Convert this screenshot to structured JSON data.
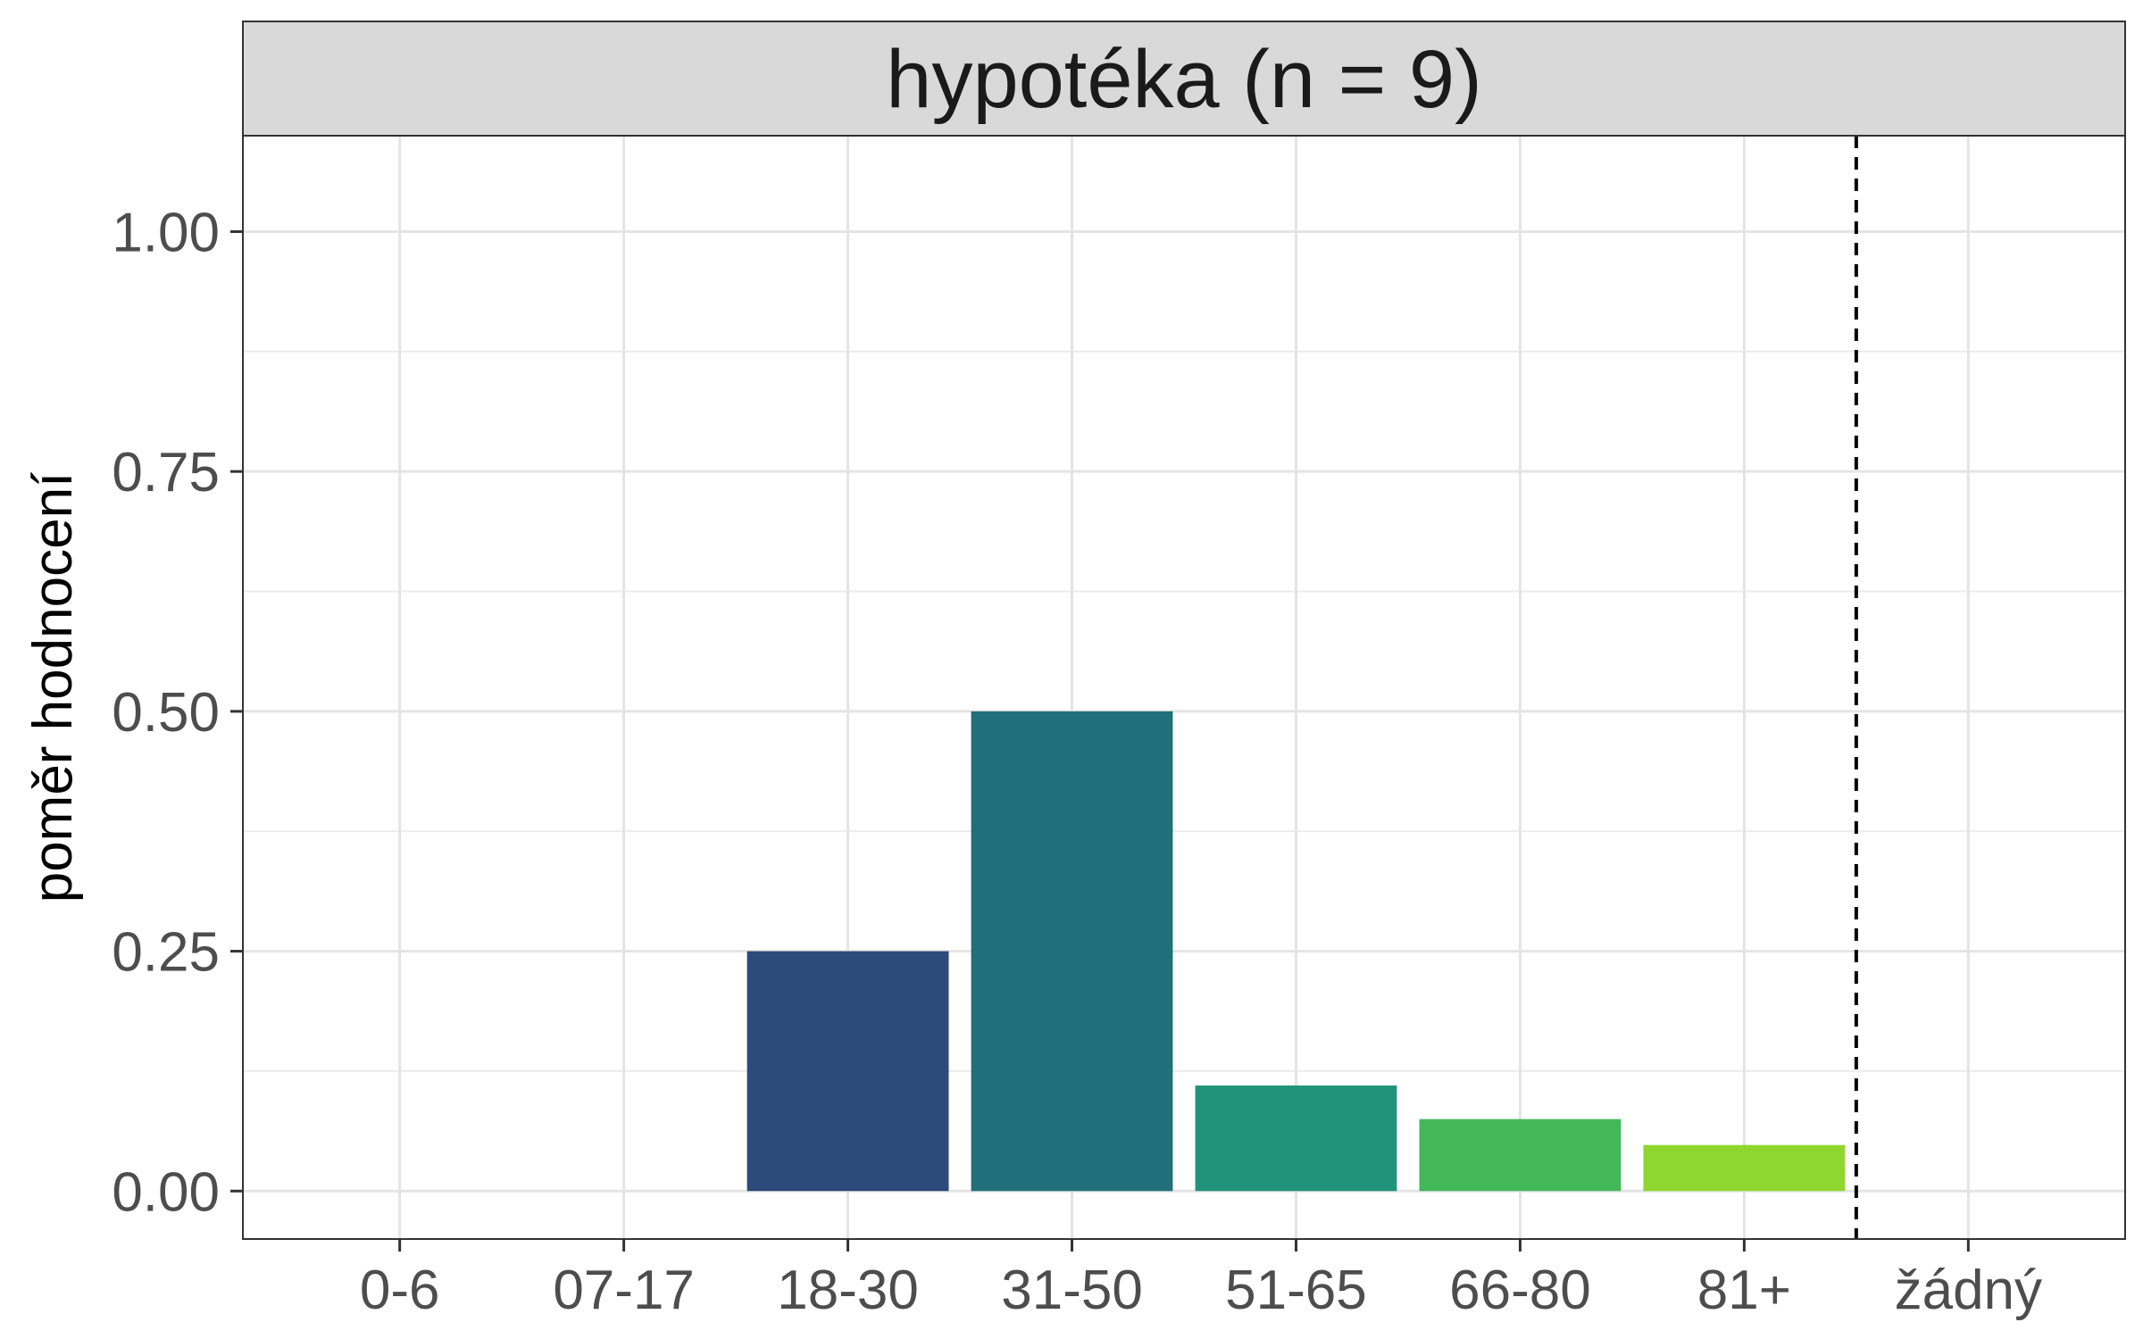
{
  "chart_data": {
    "type": "bar",
    "title": "hypotéka (n = 9)",
    "xlabel": "",
    "ylabel": "poměr hodnocení",
    "categories": [
      "0-6",
      "07-17",
      "18-30",
      "31-50",
      "51-65",
      "66-80",
      "81+",
      "žádný"
    ],
    "values": [
      0,
      0,
      0.25,
      0.5,
      0.11,
      0.075,
      0.048,
      0
    ],
    "colors": [
      "#440154",
      "#46337E",
      "#2C4A7A",
      "#216F7B",
      "#21937A",
      "#42B85A",
      "#8FD62E",
      "#FDE725"
    ],
    "ylim": [
      -0.05,
      1.1
    ],
    "yticks": [
      0.0,
      0.25,
      0.5,
      0.75,
      1.0
    ],
    "ytick_labels": [
      "0.00",
      "0.25",
      "0.50",
      "0.75",
      "1.00"
    ],
    "reference_line": {
      "style": "dashed",
      "between": [
        "81+",
        "žádný"
      ]
    },
    "grid": true,
    "legend": "none"
  }
}
